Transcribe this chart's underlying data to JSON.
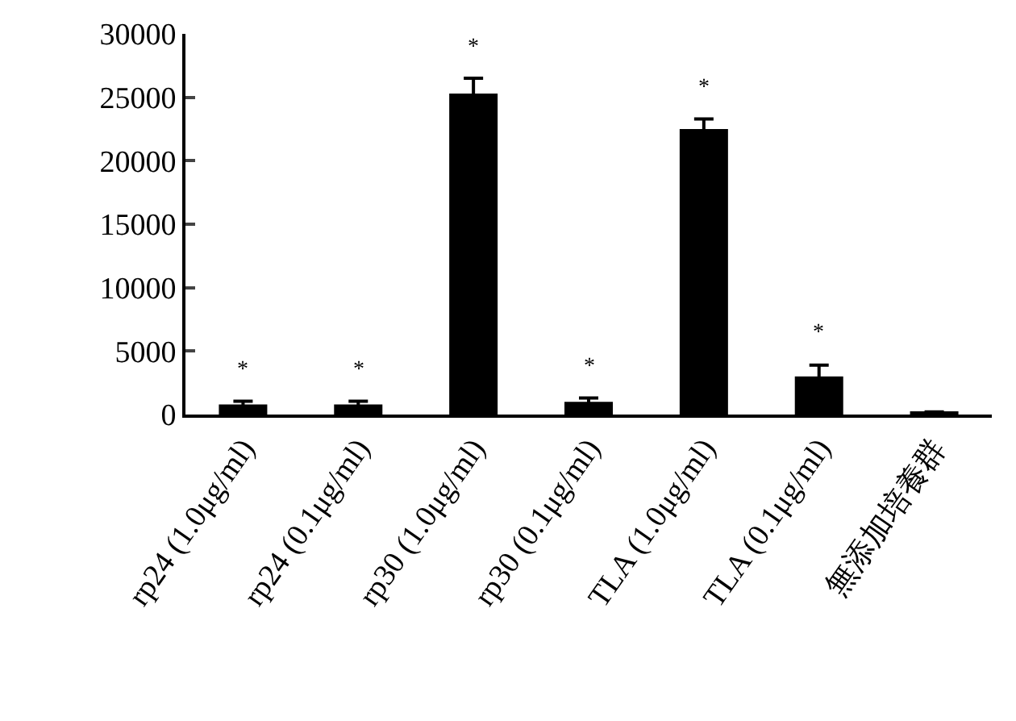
{
  "chart_data": {
    "type": "bar",
    "categories": [
      "rp24 (1.0μg/ml)",
      "rp24 (0.1μg/ml)",
      "rp30 (1.0μg/ml)",
      "rp30 (0.1μg/ml)",
      "TLA (1.0μg/ml)",
      "TLA (0.1μg/ml)",
      "無添加培養群"
    ],
    "values": [
      800,
      800,
      25300,
      1000,
      22500,
      3000,
      200
    ],
    "errors": [
      250,
      250,
      1200,
      300,
      800,
      900,
      null
    ],
    "color": "#000000",
    "ylim": [
      0,
      30000
    ],
    "yticks": [
      0,
      5000,
      10000,
      15000,
      20000,
      25000,
      30000
    ],
    "annotations": [
      "*",
      "*",
      "*",
      "*",
      "*",
      "*"
    ]
  }
}
